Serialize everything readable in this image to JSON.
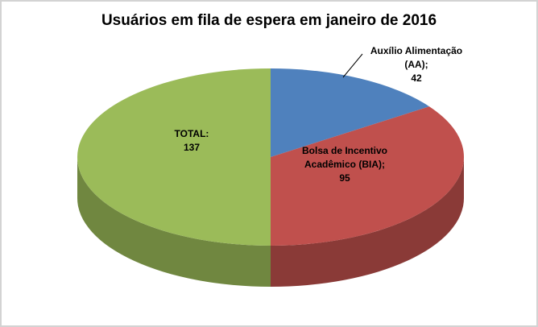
{
  "chart_data": {
    "type": "pie",
    "title": "Usuários em fila de espera em janeiro de 2016",
    "effect": "3d",
    "start_angle_deg": 0,
    "direction": "clockwise",
    "legend": "none",
    "slices": [
      {
        "label": "Auxílio Alimentação (AA)",
        "value": 42,
        "color": "#4F81BD",
        "side_color": "#365B85"
      },
      {
        "label": "Bolsa de Incentivo Acadêmico (BIA)",
        "value": 95,
        "color": "#C0504D",
        "side_color": "#8A3A37"
      },
      {
        "label": "TOTAL",
        "value": 137,
        "color": "#9BBB59",
        "side_color": "#708740"
      }
    ]
  },
  "labels": {
    "aa": {
      "lines": [
        "Auxílio Alimentação",
        "(AA);",
        "42"
      ]
    },
    "bia": {
      "lines": [
        "Bolsa de Incentivo",
        "Acadêmico (BIA);",
        "95"
      ]
    },
    "total": {
      "lines": [
        "TOTAL:",
        "137"
      ]
    }
  }
}
